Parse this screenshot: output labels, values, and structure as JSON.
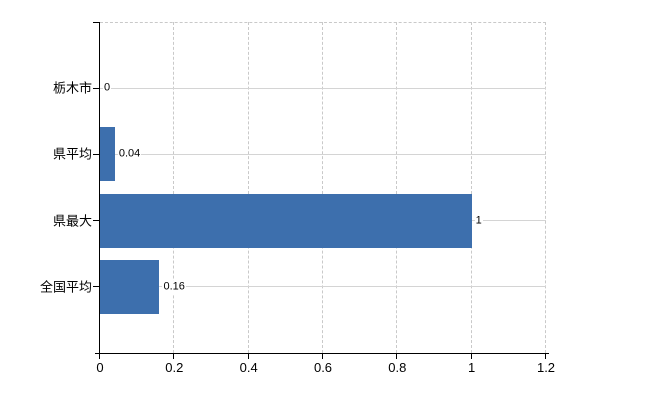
{
  "chart_data": {
    "type": "bar",
    "orientation": "horizontal",
    "categories": [
      "栃木市",
      "県平均",
      "県最大",
      "全国平均"
    ],
    "values": [
      0,
      0.04,
      1,
      0.16
    ],
    "value_labels": [
      "0",
      "0.04",
      "1",
      "0.16"
    ],
    "x_tick_values": [
      0,
      0.2,
      0.4,
      0.6,
      0.8,
      1,
      1.2
    ],
    "x_tick_labels": [
      "0",
      "0.2",
      "0.4",
      "0.6",
      "0.8",
      "1",
      "1.2"
    ],
    "xlim": [
      0,
      1.2
    ],
    "xlabel": "",
    "ylabel": "",
    "grid": true,
    "legend_position": "none",
    "bar_color": "#3d6fad"
  },
  "colors": {
    "bar": "#3d6fad",
    "axis": "#000000",
    "gridline_solid": "#d4d4d4",
    "gridline_dashed": "#c9c9c9",
    "text": "#000000",
    "background": "#ffffff"
  }
}
